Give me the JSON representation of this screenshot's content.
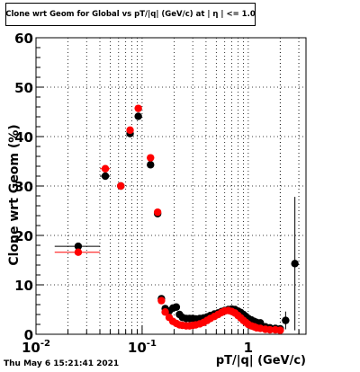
{
  "chart_data": {
    "type": "scatter",
    "title": "Clone wrt Geom for Global vs pT/|q| (GeV/c) at | η | <= 1.0",
    "xlabel": "pT/|q| (GeV/c)",
    "ylabel": "Clone wrt Geom (%)",
    "xscale": "log",
    "xlim": [
      0.01,
      3.5
    ],
    "ylim": [
      0,
      60
    ],
    "grid": true,
    "yticks": [
      "0",
      "10",
      "20",
      "30",
      "40",
      "50",
      "60"
    ],
    "xticks": [
      {
        "value": 0.01,
        "label": "10",
        "exp": "-2"
      },
      {
        "value": 0.1,
        "label": "10",
        "exp": "-1"
      },
      {
        "value": 1,
        "label": "1",
        "exp": ""
      }
    ],
    "series": [
      {
        "color": "#000000",
        "points": [
          {
            "x": 0.025,
            "y": 17.8,
            "xerr": [
              0.015,
              0.04
            ]
          },
          {
            "x": 0.045,
            "y": 32.0,
            "xerr": [
              0.04,
              0.05
            ]
          },
          {
            "x": 0.063,
            "y": 30.0
          },
          {
            "x": 0.077,
            "y": 40.6
          },
          {
            "x": 0.092,
            "y": 44.1
          },
          {
            "x": 0.12,
            "y": 34.3
          },
          {
            "x": 0.14,
            "y": 24.4
          },
          {
            "x": 0.152,
            "y": 7.2
          },
          {
            "x": 0.165,
            "y": 5.2
          },
          {
            "x": 0.18,
            "y": 4.7
          },
          {
            "x": 0.195,
            "y": 5.3
          },
          {
            "x": 0.21,
            "y": 5.5
          },
          {
            "x": 0.225,
            "y": 4.0
          },
          {
            "x": 0.24,
            "y": 3.4
          },
          {
            "x": 0.26,
            "y": 3.2
          },
          {
            "x": 0.28,
            "y": 3.2
          },
          {
            "x": 0.3,
            "y": 3.2
          },
          {
            "x": 0.32,
            "y": 3.1
          },
          {
            "x": 0.35,
            "y": 3.2
          },
          {
            "x": 0.38,
            "y": 3.3
          },
          {
            "x": 0.41,
            "y": 3.5
          },
          {
            "x": 0.44,
            "y": 3.8
          },
          {
            "x": 0.48,
            "y": 4.1
          },
          {
            "x": 0.52,
            "y": 4.3
          },
          {
            "x": 0.56,
            "y": 4.6
          },
          {
            "x": 0.6,
            "y": 4.8
          },
          {
            "x": 0.65,
            "y": 5.0
          },
          {
            "x": 0.7,
            "y": 5.1
          },
          {
            "x": 0.75,
            "y": 5.0
          },
          {
            "x": 0.8,
            "y": 4.7
          },
          {
            "x": 0.85,
            "y": 4.4
          },
          {
            "x": 0.9,
            "y": 4.0
          },
          {
            "x": 0.95,
            "y": 3.6
          },
          {
            "x": 1.0,
            "y": 3.2
          },
          {
            "x": 1.07,
            "y": 2.9
          },
          {
            "x": 1.14,
            "y": 2.6
          },
          {
            "x": 1.2,
            "y": 2.4
          },
          {
            "x": 1.3,
            "y": 2.3,
            "yerr": 0.6
          },
          {
            "x": 1.45,
            "y": 1.5
          },
          {
            "x": 1.6,
            "y": 1.3
          },
          {
            "x": 1.8,
            "y": 1.2
          },
          {
            "x": 2.0,
            "y": 1.1
          },
          {
            "x": 2.25,
            "y": 2.8,
            "yerr": 1.8
          },
          {
            "x": 2.75,
            "y": 14.3,
            "yerr": 13.5
          }
        ]
      },
      {
        "color": "#ff0000",
        "points": [
          {
            "x": 0.025,
            "y": 16.6,
            "xerr": [
              0.015,
              0.04
            ]
          },
          {
            "x": 0.045,
            "y": 33.5,
            "xerr": [
              0.04,
              0.05
            ]
          },
          {
            "x": 0.063,
            "y": 30.0
          },
          {
            "x": 0.077,
            "y": 41.3
          },
          {
            "x": 0.092,
            "y": 45.7
          },
          {
            "x": 0.12,
            "y": 35.7
          },
          {
            "x": 0.14,
            "y": 24.7
          },
          {
            "x": 0.152,
            "y": 6.8
          },
          {
            "x": 0.165,
            "y": 4.5
          },
          {
            "x": 0.18,
            "y": 3.4
          },
          {
            "x": 0.195,
            "y": 2.6
          },
          {
            "x": 0.21,
            "y": 2.2
          },
          {
            "x": 0.225,
            "y": 1.9
          },
          {
            "x": 0.24,
            "y": 1.8
          },
          {
            "x": 0.26,
            "y": 1.7
          },
          {
            "x": 0.28,
            "y": 1.7
          },
          {
            "x": 0.3,
            "y": 1.8
          },
          {
            "x": 0.32,
            "y": 1.9
          },
          {
            "x": 0.35,
            "y": 2.1
          },
          {
            "x": 0.38,
            "y": 2.4
          },
          {
            "x": 0.41,
            "y": 2.8
          },
          {
            "x": 0.44,
            "y": 3.2
          },
          {
            "x": 0.48,
            "y": 3.6
          },
          {
            "x": 0.52,
            "y": 4.0
          },
          {
            "x": 0.56,
            "y": 4.4
          },
          {
            "x": 0.6,
            "y": 4.7
          },
          {
            "x": 0.65,
            "y": 4.8
          },
          {
            "x": 0.7,
            "y": 4.6
          },
          {
            "x": 0.75,
            "y": 4.3
          },
          {
            "x": 0.8,
            "y": 3.8
          },
          {
            "x": 0.85,
            "y": 3.3
          },
          {
            "x": 0.9,
            "y": 2.8
          },
          {
            "x": 0.95,
            "y": 2.4
          },
          {
            "x": 1.0,
            "y": 2.0
          },
          {
            "x": 1.07,
            "y": 1.7
          },
          {
            "x": 1.14,
            "y": 1.5
          },
          {
            "x": 1.2,
            "y": 1.3
          },
          {
            "x": 1.3,
            "y": 1.2
          },
          {
            "x": 1.45,
            "y": 1.0
          },
          {
            "x": 1.6,
            "y": 0.9
          },
          {
            "x": 1.8,
            "y": 0.9
          },
          {
            "x": 2.0,
            "y": 0.8
          }
        ]
      }
    ]
  },
  "footer": {
    "timestamp": "Thu May  6 15:21:41 2021"
  }
}
